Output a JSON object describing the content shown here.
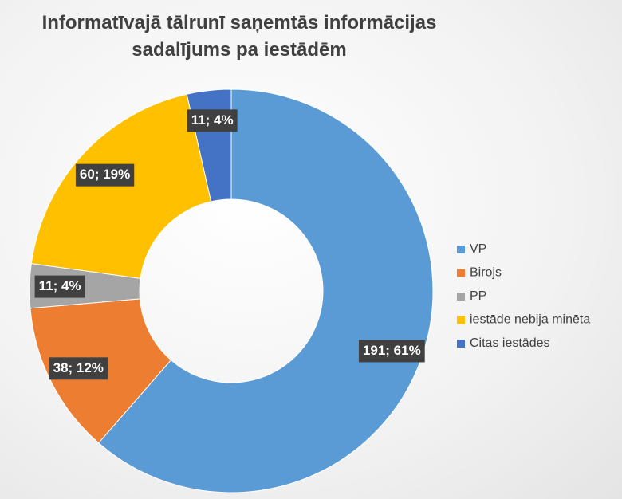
{
  "chart_data": {
    "type": "donut",
    "title": "Informatīvajā tālrunī saņemtās informācijas sadalījums pa iestādēm",
    "categories": [
      "VP",
      "Birojs",
      "PP",
      "iestāde nebija minēta",
      "Citas iestādes"
    ],
    "values": [
      191,
      38,
      11,
      60,
      11
    ],
    "value_labels": [
      "191; 61%",
      "38; 12%",
      "11; 4%",
      "60; 19%",
      "11; 4%"
    ],
    "colors": [
      "#5b9bd5",
      "#ed7d31",
      "#a5a5a5",
      "#ffc000",
      "#4472c4"
    ],
    "legend": "right"
  }
}
